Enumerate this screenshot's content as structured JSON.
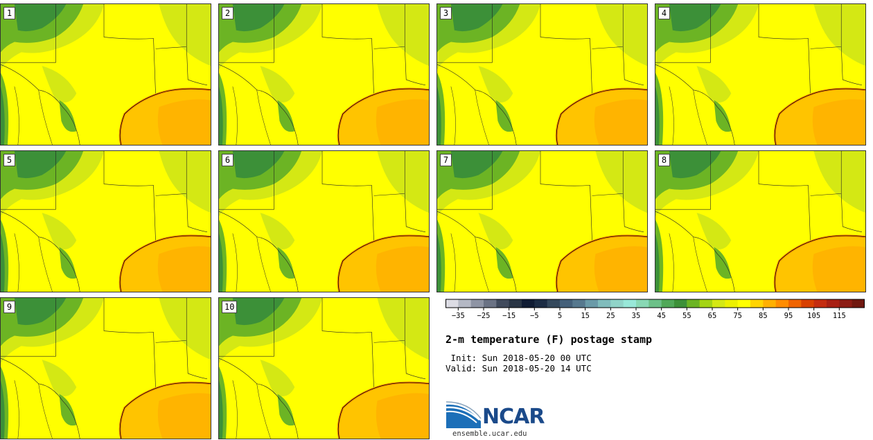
{
  "stamps": [
    {
      "label": "1"
    },
    {
      "label": "2"
    },
    {
      "label": "3"
    },
    {
      "label": "4"
    },
    {
      "label": "5"
    },
    {
      "label": "6"
    },
    {
      "label": "7"
    },
    {
      "label": "8"
    },
    {
      "label": "9"
    },
    {
      "label": "10"
    }
  ],
  "colorbar": {
    "ticks": [
      "−35",
      "−25",
      "−15",
      "−5",
      "5",
      "15",
      "25",
      "35",
      "45",
      "55",
      "65",
      "75",
      "85",
      "95",
      "105",
      "115"
    ],
    "colors": [
      "#dcdce4",
      "#b4b8c4",
      "#8e94a4",
      "#6a7284",
      "#404a5c",
      "#283444",
      "#101c34",
      "#1c2c44",
      "#34485c",
      "#44607a",
      "#56788e",
      "#6a9aa8",
      "#80bcbc",
      "#90d4c8",
      "#98e8d8",
      "#88d8b4",
      "#6cc088",
      "#50a858",
      "#3c9038",
      "#6cb424",
      "#a4d414",
      "#d4e814",
      "#ecf000",
      "#ffff00",
      "#ffd400",
      "#ffb000",
      "#ff8c00",
      "#f06400",
      "#d84000",
      "#c42c10",
      "#a82014",
      "#8c1c14",
      "#701810"
    ]
  },
  "colors": {
    "ocean": "#ffc400",
    "land_base": "#ffff00",
    "cool_high": "#3c9038",
    "mid": "#6cb424",
    "light": "#d4e814",
    "warm": "#ff8c00"
  },
  "title": "2-m temperature (F) postage stamp",
  "init": " Init: Sun 2018-05-20 00 UTC",
  "valid": "Valid: Sun 2018-05-20 14 UTC",
  "logo": {
    "text": "NCAR",
    "url": "ensemble.ucar.edu"
  }
}
